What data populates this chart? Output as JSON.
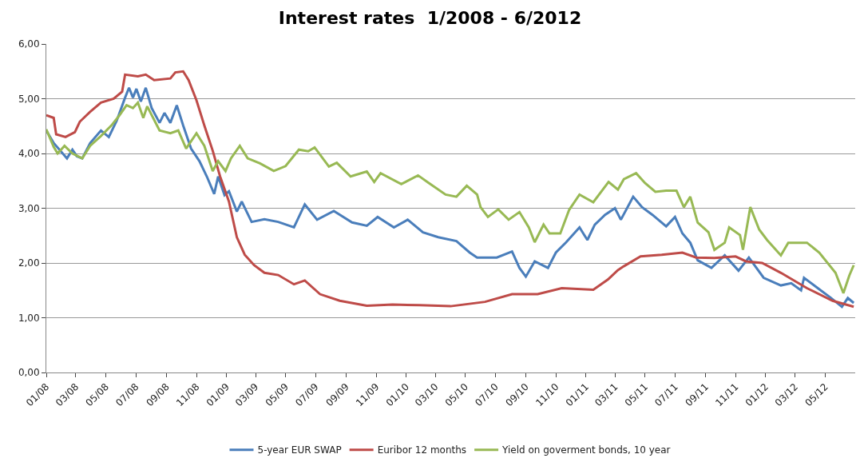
{
  "chart_data": {
    "type": "line",
    "title": "Interest rates  1/2008 - 6/2012",
    "xlim": [
      "2008-01-01",
      "2012-07-01"
    ],
    "xticks": [
      {
        "value": "2008-01-01",
        "label": "01/08"
      },
      {
        "value": "2008-03-01",
        "label": "03/08"
      },
      {
        "value": "2008-05-01",
        "label": "05/08"
      },
      {
        "value": "2008-07-01",
        "label": "07/08"
      },
      {
        "value": "2008-09-01",
        "label": "09/08"
      },
      {
        "value": "2008-11-01",
        "label": "11/08"
      },
      {
        "value": "2009-01-01",
        "label": "01/09"
      },
      {
        "value": "2009-03-01",
        "label": "03/09"
      },
      {
        "value": "2009-05-01",
        "label": "05/09"
      },
      {
        "value": "2009-07-01",
        "label": "07/09"
      },
      {
        "value": "2009-09-01",
        "label": "09/09"
      },
      {
        "value": "2009-11-01",
        "label": "11/09"
      },
      {
        "value": "2010-01-01",
        "label": "01/10"
      },
      {
        "value": "2010-03-01",
        "label": "03/10"
      },
      {
        "value": "2010-05-01",
        "label": "05/10"
      },
      {
        "value": "2010-07-01",
        "label": "07/10"
      },
      {
        "value": "2010-09-01",
        "label": "09/10"
      },
      {
        "value": "2010-11-01",
        "label": "11/10"
      },
      {
        "value": "2011-01-01",
        "label": "01/11"
      },
      {
        "value": "2011-03-01",
        "label": "03/11"
      },
      {
        "value": "2011-05-01",
        "label": "05/11"
      },
      {
        "value": "2011-07-01",
        "label": "07/11"
      },
      {
        "value": "2011-09-01",
        "label": "09/11"
      },
      {
        "value": "2011-11-01",
        "label": "11/11"
      },
      {
        "value": "2012-01-01",
        "label": "01/12"
      },
      {
        "value": "2012-03-01",
        "label": "03/12"
      },
      {
        "value": "2012-05-01",
        "label": "05/12"
      }
    ],
    "ylim": [
      0,
      6
    ],
    "yticks": [
      {
        "value": 0,
        "label": "0,00"
      },
      {
        "value": 1,
        "label": "1,00"
      },
      {
        "value": 2,
        "label": "2,00"
      },
      {
        "value": 3,
        "label": "3,00"
      },
      {
        "value": 4,
        "label": "4,00"
      },
      {
        "value": 5,
        "label": "5,00"
      },
      {
        "value": 6,
        "label": "6,00"
      }
    ],
    "grid": "y",
    "legend": "bottom",
    "series": [
      {
        "name": "5-year EUR SWAP",
        "color": "#4a7ebb",
        "x": [
          "2008-01-01",
          "2008-01-16",
          "2008-02-12",
          "2008-02-23",
          "2008-03-03",
          "2008-03-14",
          "2008-03-30",
          "2008-04-21",
          "2008-05-07",
          "2008-05-23",
          "2008-06-09",
          "2008-06-17",
          "2008-06-25",
          "2008-07-02",
          "2008-07-11",
          "2008-07-21",
          "2008-08-02",
          "2008-08-18",
          "2008-08-28",
          "2008-09-09",
          "2008-09-22",
          "2008-10-05",
          "2008-10-21",
          "2008-11-07",
          "2008-11-22",
          "2008-12-07",
          "2008-12-15",
          "2008-12-28",
          "2009-01-06",
          "2009-01-22",
          "2009-02-01",
          "2009-02-21",
          "2009-03-19",
          "2009-04-16",
          "2009-05-18",
          "2009-06-09",
          "2009-07-04",
          "2009-08-07",
          "2009-09-13",
          "2009-10-13",
          "2009-11-04",
          "2009-12-07",
          "2010-01-04",
          "2010-02-04",
          "2010-03-07",
          "2010-04-13",
          "2010-05-10",
          "2010-05-25",
          "2010-07-04",
          "2010-08-04",
          "2010-08-19",
          "2010-09-01",
          "2010-09-19",
          "2010-10-16",
          "2010-11-01",
          "2010-11-22",
          "2010-12-19",
          "2011-01-04",
          "2011-01-19",
          "2011-02-09",
          "2011-03-01",
          "2011-03-13",
          "2011-04-07",
          "2011-04-25",
          "2011-05-16",
          "2011-06-13",
          "2011-07-01",
          "2011-07-16",
          "2011-08-01",
          "2011-08-16",
          "2011-09-13",
          "2011-10-10",
          "2011-11-07",
          "2011-11-28",
          "2011-12-28",
          "2012-02-01",
          "2012-02-22",
          "2012-03-13",
          "2012-03-19",
          "2012-04-16",
          "2012-05-13",
          "2012-06-04",
          "2012-06-16",
          "2012-06-28"
        ],
        "values": [
          4.42,
          4.19,
          3.91,
          4.07,
          3.95,
          3.91,
          4.19,
          4.42,
          4.3,
          4.6,
          5.02,
          5.2,
          5.02,
          5.18,
          4.95,
          5.2,
          4.83,
          4.56,
          4.74,
          4.56,
          4.88,
          4.51,
          4.09,
          3.86,
          3.58,
          3.26,
          3.58,
          3.24,
          3.31,
          2.94,
          3.12,
          2.75,
          2.8,
          2.75,
          2.65,
          3.07,
          2.79,
          2.95,
          2.74,
          2.68,
          2.84,
          2.65,
          2.79,
          2.56,
          2.47,
          2.4,
          2.19,
          2.1,
          2.1,
          2.21,
          1.91,
          1.75,
          2.03,
          1.91,
          2.19,
          2.38,
          2.65,
          2.42,
          2.7,
          2.88,
          3.0,
          2.79,
          3.21,
          3.02,
          2.88,
          2.67,
          2.84,
          2.54,
          2.37,
          2.05,
          1.91,
          2.14,
          1.86,
          2.1,
          1.73,
          1.59,
          1.63,
          1.5,
          1.73,
          1.54,
          1.36,
          1.2,
          1.36,
          1.27
        ]
      },
      {
        "name": "Euribor 12 months",
        "color": "#be4b48",
        "x": [
          "2008-01-01",
          "2008-01-16",
          "2008-01-21",
          "2008-02-09",
          "2008-02-28",
          "2008-03-09",
          "2008-03-30",
          "2008-04-21",
          "2008-05-17",
          "2008-06-03",
          "2008-06-09",
          "2008-07-05",
          "2008-07-21",
          "2008-08-07",
          "2008-09-09",
          "2008-09-19",
          "2008-10-05",
          "2008-10-16",
          "2008-11-01",
          "2008-11-17",
          "2008-12-04",
          "2008-12-19",
          "2009-01-06",
          "2009-01-22",
          "2009-02-07",
          "2009-02-26",
          "2009-03-19",
          "2009-04-16",
          "2009-05-18",
          "2009-06-09",
          "2009-07-10",
          "2009-08-19",
          "2009-10-13",
          "2009-12-04",
          "2010-01-28",
          "2010-04-01",
          "2010-06-10",
          "2010-08-04",
          "2010-09-25",
          "2010-11-13",
          "2011-01-16",
          "2011-02-15",
          "2011-03-07",
          "2011-03-19",
          "2011-04-22",
          "2011-06-04",
          "2011-07-16",
          "2011-08-13",
          "2011-09-19",
          "2011-11-01",
          "2011-11-22",
          "2011-12-25",
          "2012-02-01",
          "2012-03-25",
          "2012-05-16",
          "2012-06-28"
        ],
        "values": [
          4.7,
          4.65,
          4.35,
          4.3,
          4.39,
          4.58,
          4.76,
          4.93,
          5.0,
          5.13,
          5.44,
          5.41,
          5.44,
          5.34,
          5.37,
          5.48,
          5.5,
          5.34,
          4.97,
          4.51,
          4.05,
          3.58,
          3.12,
          2.47,
          2.15,
          1.96,
          1.82,
          1.78,
          1.61,
          1.68,
          1.43,
          1.31,
          1.22,
          1.24,
          1.23,
          1.21,
          1.29,
          1.43,
          1.43,
          1.54,
          1.51,
          1.7,
          1.87,
          1.94,
          2.12,
          2.15,
          2.19,
          2.1,
          2.09,
          2.12,
          2.03,
          2.0,
          1.82,
          1.54,
          1.31,
          1.2
        ]
      },
      {
        "name": "Yield on goverment bonds, 10 year",
        "color": "#98b954",
        "x": [
          "2008-01-01",
          "2008-01-16",
          "2008-01-24",
          "2008-02-07",
          "2008-02-23",
          "2008-03-14",
          "2008-03-30",
          "2008-04-21",
          "2008-05-12",
          "2008-05-28",
          "2008-06-12",
          "2008-06-25",
          "2008-07-05",
          "2008-07-16",
          "2008-07-24",
          "2008-08-18",
          "2008-09-09",
          "2008-09-25",
          "2008-10-11",
          "2008-11-01",
          "2008-11-17",
          "2008-12-04",
          "2008-12-15",
          "2008-12-30",
          "2009-01-10",
          "2009-01-28",
          "2009-02-13",
          "2009-03-10",
          "2009-04-07",
          "2009-05-01",
          "2009-05-28",
          "2009-06-16",
          "2009-06-29",
          "2009-07-28",
          "2009-08-13",
          "2009-09-10",
          "2009-10-13",
          "2009-10-28",
          "2009-11-10",
          "2009-12-22",
          "2010-01-25",
          "2010-02-16",
          "2010-03-22",
          "2010-04-13",
          "2010-05-04",
          "2010-05-25",
          "2010-06-01",
          "2010-06-16",
          "2010-07-07",
          "2010-07-28",
          "2010-08-19",
          "2010-09-07",
          "2010-09-19",
          "2010-10-07",
          "2010-10-19",
          "2010-11-10",
          "2010-11-28",
          "2010-12-19",
          "2011-01-16",
          "2011-02-16",
          "2011-03-07",
          "2011-03-19",
          "2011-04-13",
          "2011-05-01",
          "2011-05-22",
          "2011-06-13",
          "2011-07-04",
          "2011-07-19",
          "2011-08-01",
          "2011-08-16",
          "2011-09-07",
          "2011-09-19",
          "2011-10-10",
          "2011-10-19",
          "2011-11-10",
          "2011-11-16",
          "2011-12-01",
          "2011-12-19",
          "2012-01-04",
          "2012-02-01",
          "2012-02-16",
          "2012-03-25",
          "2012-04-19",
          "2012-05-22",
          "2012-06-07",
          "2012-06-19",
          "2012-06-28"
        ],
        "values": [
          4.44,
          4.12,
          4.0,
          4.14,
          4.0,
          3.91,
          4.14,
          4.32,
          4.51,
          4.69,
          4.88,
          4.83,
          4.93,
          4.65,
          4.86,
          4.42,
          4.37,
          4.42,
          4.09,
          4.37,
          4.14,
          3.68,
          3.86,
          3.68,
          3.91,
          4.14,
          3.91,
          3.82,
          3.68,
          3.77,
          4.07,
          4.04,
          4.11,
          3.76,
          3.83,
          3.58,
          3.67,
          3.48,
          3.64,
          3.44,
          3.6,
          3.46,
          3.25,
          3.21,
          3.41,
          3.25,
          3.02,
          2.84,
          2.98,
          2.79,
          2.93,
          2.65,
          2.38,
          2.7,
          2.54,
          2.54,
          2.97,
          3.25,
          3.11,
          3.48,
          3.34,
          3.53,
          3.64,
          3.46,
          3.3,
          3.32,
          3.32,
          3.02,
          3.21,
          2.74,
          2.56,
          2.24,
          2.37,
          2.65,
          2.51,
          2.24,
          3.02,
          2.61,
          2.42,
          2.14,
          2.37,
          2.37,
          2.19,
          1.82,
          1.45,
          1.77,
          1.96
        ]
      }
    ]
  }
}
